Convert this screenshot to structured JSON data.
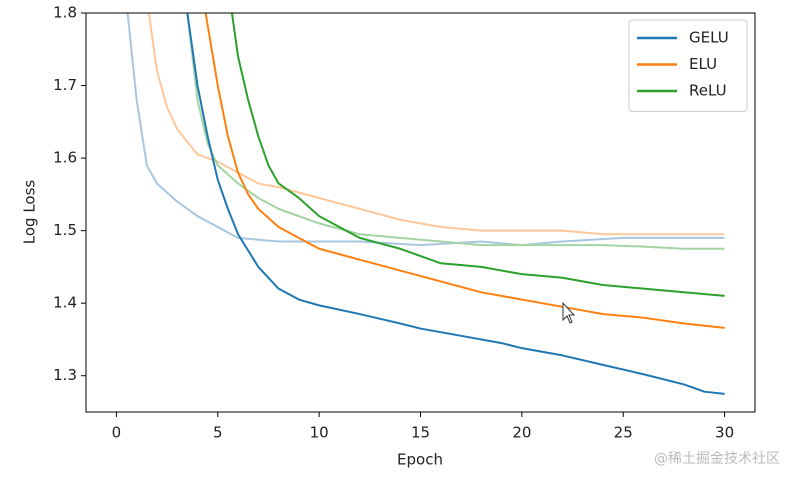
{
  "chart_data": {
    "type": "line",
    "xlabel": "Epoch",
    "ylabel": "Log Loss",
    "xlim": [
      -1.5,
      31.5
    ],
    "ylim": [
      1.25,
      1.8
    ],
    "xticks": [
      0,
      5,
      10,
      15,
      20,
      25,
      30
    ],
    "yticks": [
      1.3,
      1.4,
      1.5,
      1.6,
      1.7,
      1.8
    ],
    "legend": "upper right",
    "series": [
      {
        "color": "#a9c6e0",
        "x": [
          0.55,
          1,
          1.5,
          2,
          3,
          4,
          5,
          6,
          8,
          10,
          12,
          15,
          18,
          20,
          22,
          25,
          28,
          30
        ],
        "values": [
          1.8,
          1.68,
          1.59,
          1.565,
          1.54,
          1.52,
          1.505,
          1.49,
          1.485,
          1.485,
          1.485,
          1.48,
          1.485,
          1.48,
          1.485,
          1.49,
          1.49,
          1.49
        ]
      },
      {
        "color": "#ffc79a",
        "x": [
          1.6,
          2,
          2.5,
          3,
          4,
          5,
          6,
          7,
          8,
          10,
          12,
          14,
          16,
          18,
          20,
          22,
          24,
          26,
          28,
          30
        ],
        "values": [
          1.8,
          1.72,
          1.67,
          1.64,
          1.605,
          1.595,
          1.58,
          1.565,
          1.56,
          1.545,
          1.53,
          1.515,
          1.505,
          1.5,
          1.5,
          1.5,
          1.495,
          1.495,
          1.495,
          1.495
        ]
      },
      {
        "color": "#a3d4a3",
        "x": [
          3.5,
          4,
          4.5,
          5,
          6,
          7,
          8,
          10,
          12,
          14,
          16,
          18,
          20,
          22,
          24,
          26,
          28,
          30
        ],
        "values": [
          1.8,
          1.68,
          1.62,
          1.59,
          1.565,
          1.545,
          1.53,
          1.51,
          1.495,
          1.49,
          1.485,
          1.48,
          1.48,
          1.48,
          1.48,
          1.478,
          1.475,
          1.475
        ]
      },
      {
        "name": "GELU",
        "color": "#1f77b4",
        "x": [
          3.5,
          4,
          4.5,
          5,
          5.5,
          6,
          7,
          8,
          9,
          10,
          12,
          14,
          15,
          17,
          19,
          20,
          22,
          24,
          26,
          28,
          29,
          30
        ],
        "values": [
          1.8,
          1.7,
          1.63,
          1.57,
          1.53,
          1.495,
          1.45,
          1.42,
          1.405,
          1.397,
          1.385,
          1.372,
          1.365,
          1.355,
          1.345,
          1.338,
          1.328,
          1.315,
          1.302,
          1.288,
          1.278,
          1.275
        ]
      },
      {
        "name": "ELU",
        "color": "#ff7f0e",
        "x": [
          4.4,
          5,
          5.5,
          6,
          6.5,
          7,
          8,
          9,
          10,
          12,
          14,
          16,
          18,
          20,
          22,
          24,
          26,
          28,
          30
        ],
        "values": [
          1.8,
          1.7,
          1.63,
          1.58,
          1.55,
          1.53,
          1.505,
          1.49,
          1.475,
          1.46,
          1.445,
          1.43,
          1.415,
          1.405,
          1.395,
          1.385,
          1.38,
          1.372,
          1.366
        ]
      },
      {
        "name": "ReLU",
        "color": "#2ca02c",
        "x": [
          5.7,
          6,
          6.5,
          7,
          7.5,
          8,
          9,
          10,
          11,
          12,
          14,
          16,
          18,
          20,
          22,
          24,
          26,
          28,
          30
        ],
        "values": [
          1.8,
          1.74,
          1.68,
          1.63,
          1.59,
          1.565,
          1.545,
          1.52,
          1.505,
          1.49,
          1.475,
          1.455,
          1.45,
          1.44,
          1.435,
          1.425,
          1.42,
          1.415,
          1.41
        ]
      }
    ]
  },
  "watermark": "@稀土掘金技术社区"
}
